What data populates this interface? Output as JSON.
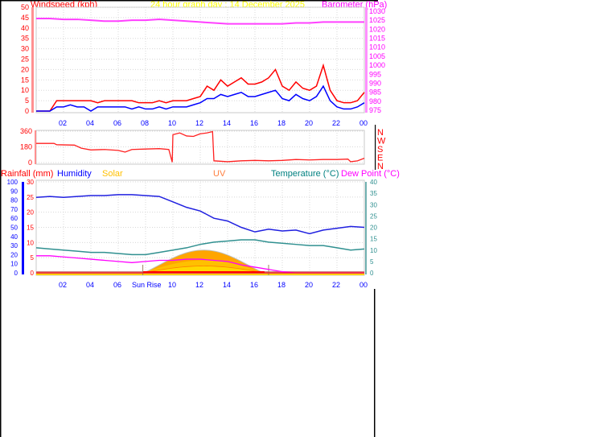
{
  "title": "24 hour graph day : 14 December 2025",
  "colors": {
    "wind_gust": "#ff0000",
    "wind_avg": "#0000ff",
    "barometer": "#ff40ff",
    "direction": "#ff2020",
    "humidity": "#2020e0",
    "temperature": "#309090",
    "dew_point": "#ff00ff",
    "solar": "#ffa500",
    "rain": "#ff0000",
    "grid": "#d8d8d8"
  },
  "chart_data": [
    {
      "type": "line",
      "title": "24 hour graph day : 14 December 2025",
      "ylabel": "Windspeed (kph)",
      "y2label": "Barometer (hPa)",
      "ylim": [
        0,
        50
      ],
      "y2lim": [
        975,
        1030
      ],
      "yticks": [
        "0",
        "5",
        "10",
        "15",
        "20",
        "25",
        "30",
        "35",
        "40",
        "45",
        "50"
      ],
      "y2ticks": [
        "975",
        "980",
        "985",
        "990",
        "995",
        "1000",
        "1005",
        "1010",
        "1015",
        "1020",
        "1025",
        "1030"
      ],
      "xticks": [
        "02",
        "04",
        "06",
        "08",
        "10",
        "12",
        "14",
        "16",
        "18",
        "20",
        "22",
        "00"
      ],
      "grid": true,
      "series": [
        {
          "key": "gust",
          "values": [
            0,
            0,
            0,
            5,
            5,
            5,
            5,
            5,
            5,
            4,
            5,
            5,
            5,
            5,
            5,
            4,
            4,
            4,
            5,
            4,
            5,
            5,
            5,
            6,
            7,
            12,
            10,
            15,
            12,
            14,
            16,
            13,
            13,
            14,
            16,
            20,
            12,
            10,
            14,
            11,
            10,
            12,
            22,
            10,
            5,
            4,
            4,
            5,
            9
          ]
        },
        {
          "key": "avg",
          "values": [
            0,
            0,
            0,
            2,
            2,
            3,
            2,
            2,
            0,
            2,
            2,
            2,
            2,
            2,
            1,
            2,
            1,
            1,
            2,
            1,
            2,
            2,
            2,
            3,
            4,
            6,
            6,
            8,
            7,
            8,
            9,
            7,
            7,
            8,
            9,
            10,
            6,
            5,
            8,
            6,
            5,
            7,
            12,
            5,
            2,
            1,
            1,
            2,
            4
          ]
        },
        {
          "key": "barometer",
          "values": [
            1026,
            1026,
            1025.5,
            1025.5,
            1025,
            1024.5,
            1024.5,
            1025,
            1025,
            1025.5,
            1025,
            1024.5,
            1024,
            1023.5,
            1023,
            1023,
            1023,
            1023,
            1023,
            1023.5,
            1023.5,
            1024,
            1024,
            1024,
            1024
          ]
        }
      ]
    },
    {
      "type": "line",
      "ylim": [
        0,
        360
      ],
      "yticks": [
        "0",
        "180",
        "360"
      ],
      "compass": [
        "N",
        "W",
        "S",
        "E",
        "N"
      ],
      "xticks": [
        "02",
        "04",
        "06",
        "08",
        "10",
        "12",
        "14",
        "16",
        "18",
        "20",
        "22",
        "00"
      ],
      "series": [
        {
          "key": "direction",
          "points": [
            [
              0,
              220
            ],
            [
              1.3,
              220
            ],
            [
              1.5,
              205
            ],
            [
              2.8,
              200
            ],
            [
              3.3,
              165
            ],
            [
              4,
              145
            ],
            [
              5,
              150
            ],
            [
              6,
              140
            ],
            [
              6.5,
              120
            ],
            [
              7,
              150
            ],
            [
              8,
              155
            ],
            [
              9,
              160
            ],
            [
              9.7,
              150
            ],
            [
              9.95,
              5
            ],
            [
              10,
              320
            ],
            [
              10.5,
              340
            ],
            [
              11,
              305
            ],
            [
              11.5,
              300
            ],
            [
              12,
              330
            ],
            [
              12.5,
              340
            ],
            [
              12.9,
              355
            ],
            [
              13,
              20
            ],
            [
              14,
              10
            ],
            [
              15,
              20
            ],
            [
              16,
              25
            ],
            [
              17,
              20
            ],
            [
              18,
              25
            ],
            [
              19,
              35
            ],
            [
              20,
              30
            ],
            [
              21,
              35
            ],
            [
              22,
              35
            ],
            [
              22.8,
              40
            ],
            [
              23,
              10
            ],
            [
              23.5,
              20
            ],
            [
              24,
              50
            ]
          ]
        }
      ]
    },
    {
      "type": "line",
      "legend": [
        "Rainfall (mm)",
        "Humidity",
        "Solar",
        "UV",
        "Temperature (°C)",
        "Dew Point (°C)"
      ],
      "ylim_humidity": [
        0,
        100
      ],
      "ylim_rain": [
        0,
        30
      ],
      "ylim_temp": [
        0,
        40
      ],
      "humidity_ticks": [
        "0",
        "10",
        "20",
        "30",
        "40",
        "50",
        "60",
        "70",
        "80",
        "90",
        "100"
      ],
      "rain_ticks": [
        "0",
        "5",
        "10",
        "15",
        "20",
        "25",
        "30"
      ],
      "temp_ticks": [
        "0",
        "5",
        "10",
        "15",
        "20",
        "25",
        "30",
        "35",
        "40"
      ],
      "xticks": [
        "02",
        "04",
        "06",
        "08",
        "10",
        "12",
        "14",
        "16",
        "18",
        "20",
        "22",
        "00"
      ],
      "sunrise_label": "Sun Rise",
      "sunrise_hour": 7.8,
      "sunset_hour": 17.0,
      "series": [
        {
          "key": "humidity",
          "values": [
            83,
            84,
            83,
            84,
            85,
            85,
            86,
            86,
            85,
            84,
            78,
            72,
            68,
            60,
            57,
            50,
            45,
            48,
            46,
            47,
            43,
            47,
            49,
            51,
            50
          ]
        },
        {
          "key": "temperature",
          "values": [
            11,
            10.5,
            10,
            9.5,
            9,
            9,
            8.5,
            8,
            8,
            9,
            10,
            11,
            12.5,
            13.5,
            14,
            14.5,
            14.5,
            13.5,
            13,
            12.5,
            12,
            12,
            11,
            10,
            10.5
          ]
        },
        {
          "key": "dew_point",
          "values": [
            7.5,
            7.5,
            7,
            6.5,
            6,
            5.5,
            5,
            4.5,
            5,
            5.5,
            5.5,
            6,
            6,
            5.5,
            5,
            3.5,
            2.5,
            1.5,
            0.5,
            0,
            0,
            0,
            0,
            0,
            0
          ]
        },
        {
          "key": "rain",
          "values": [
            0,
            0,
            0,
            0,
            0,
            0,
            0,
            0,
            0,
            0,
            0,
            0,
            0,
            0,
            0,
            0,
            0,
            0,
            0,
            0,
            0,
            0,
            0,
            0,
            0
          ]
        },
        {
          "key": "solar",
          "start": 7.8,
          "end": 16.7,
          "peak_hour": 12.3,
          "peak_humidity_units": 25
        }
      ]
    }
  ]
}
